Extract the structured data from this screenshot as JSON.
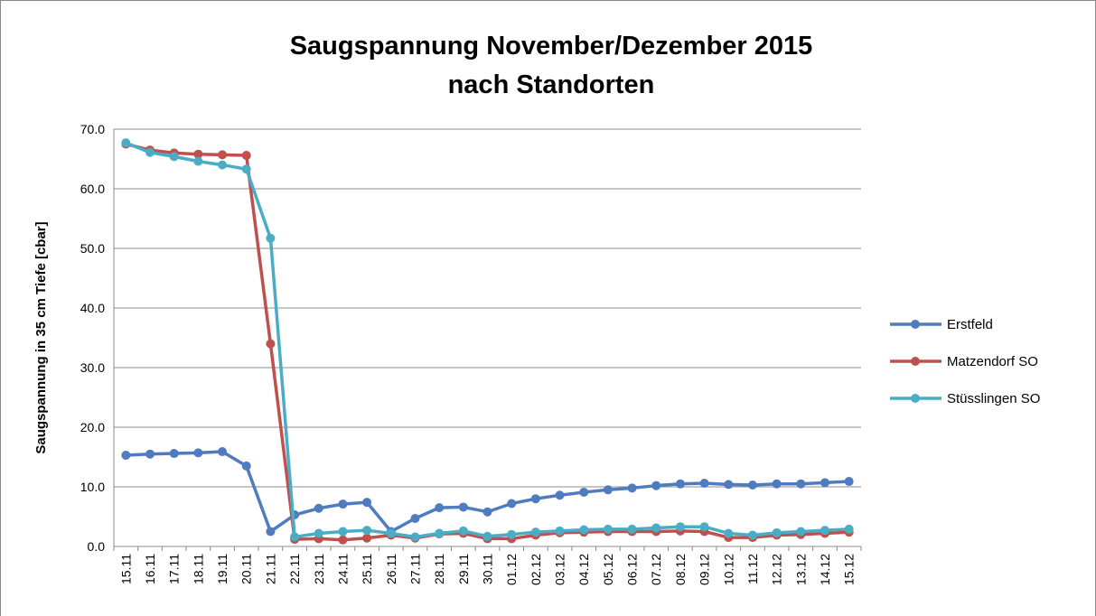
{
  "chart_data": {
    "type": "line",
    "title": [
      "Saugspannung November/Dezember 2015",
      "nach Standorten"
    ],
    "y_label": "Saugspannung in 35 cm Tiefe [cbar]",
    "categories": [
      "15.11",
      "16.11",
      "17.11",
      "18.11",
      "19.11",
      "20.11",
      "21.11",
      "22.11",
      "23.11",
      "24.11",
      "25.11",
      "26.11",
      "27.11",
      "28.11",
      "29.11",
      "30.11",
      "01.12",
      "02.12",
      "03.12",
      "04.12",
      "05.12",
      "06.12",
      "07.12",
      "08.12",
      "09.12",
      "10.12",
      "11.12",
      "12.12",
      "13.12",
      "14.12",
      "15.12"
    ],
    "series": [
      {
        "name": "Erstfeld",
        "color": "#4f7bbf",
        "values": [
          15.3,
          15.5,
          15.6,
          15.7,
          15.9,
          13.5,
          2.5,
          5.3,
          6.4,
          7.1,
          7.4,
          2.5,
          4.7,
          6.5,
          6.6,
          5.8,
          7.2,
          8.0,
          8.6,
          9.1,
          9.5,
          9.8,
          10.2,
          10.5,
          10.6,
          10.4,
          10.3,
          10.5,
          10.5,
          10.7,
          10.9
        ]
      },
      {
        "name": "Matzendorf SO",
        "color": "#c0504d",
        "values": [
          67.5,
          66.5,
          66.0,
          65.8,
          65.7,
          65.6,
          34.0,
          1.2,
          1.3,
          1.1,
          1.4,
          1.9,
          1.4,
          2.1,
          2.2,
          1.3,
          1.3,
          1.9,
          2.3,
          2.4,
          2.5,
          2.5,
          2.5,
          2.6,
          2.5,
          1.5,
          1.5,
          1.9,
          2.0,
          2.2,
          2.4
        ]
      },
      {
        "name": "Stüsslingen SO",
        "color": "#4bacc6",
        "values": [
          67.7,
          66.1,
          65.4,
          64.6,
          64.0,
          63.3,
          51.7,
          1.6,
          2.2,
          2.5,
          2.7,
          2.2,
          1.6,
          2.2,
          2.6,
          1.7,
          2.0,
          2.4,
          2.6,
          2.8,
          2.9,
          2.9,
          3.1,
          3.3,
          3.3,
          2.2,
          1.9,
          2.3,
          2.5,
          2.7,
          2.9
        ]
      }
    ],
    "ylim": [
      0,
      70
    ],
    "yticks": [
      {
        "value": 0,
        "label": "0.0"
      },
      {
        "value": 10,
        "label": "10.0"
      },
      {
        "value": 20,
        "label": "20.0"
      },
      {
        "value": 30,
        "label": "30.0"
      },
      {
        "value": 40,
        "label": "40.0"
      },
      {
        "value": 50,
        "label": "50.0"
      },
      {
        "value": 60,
        "label": "60.0"
      },
      {
        "value": 70,
        "label": "70.0"
      }
    ],
    "grid": true,
    "legend": "right"
  }
}
